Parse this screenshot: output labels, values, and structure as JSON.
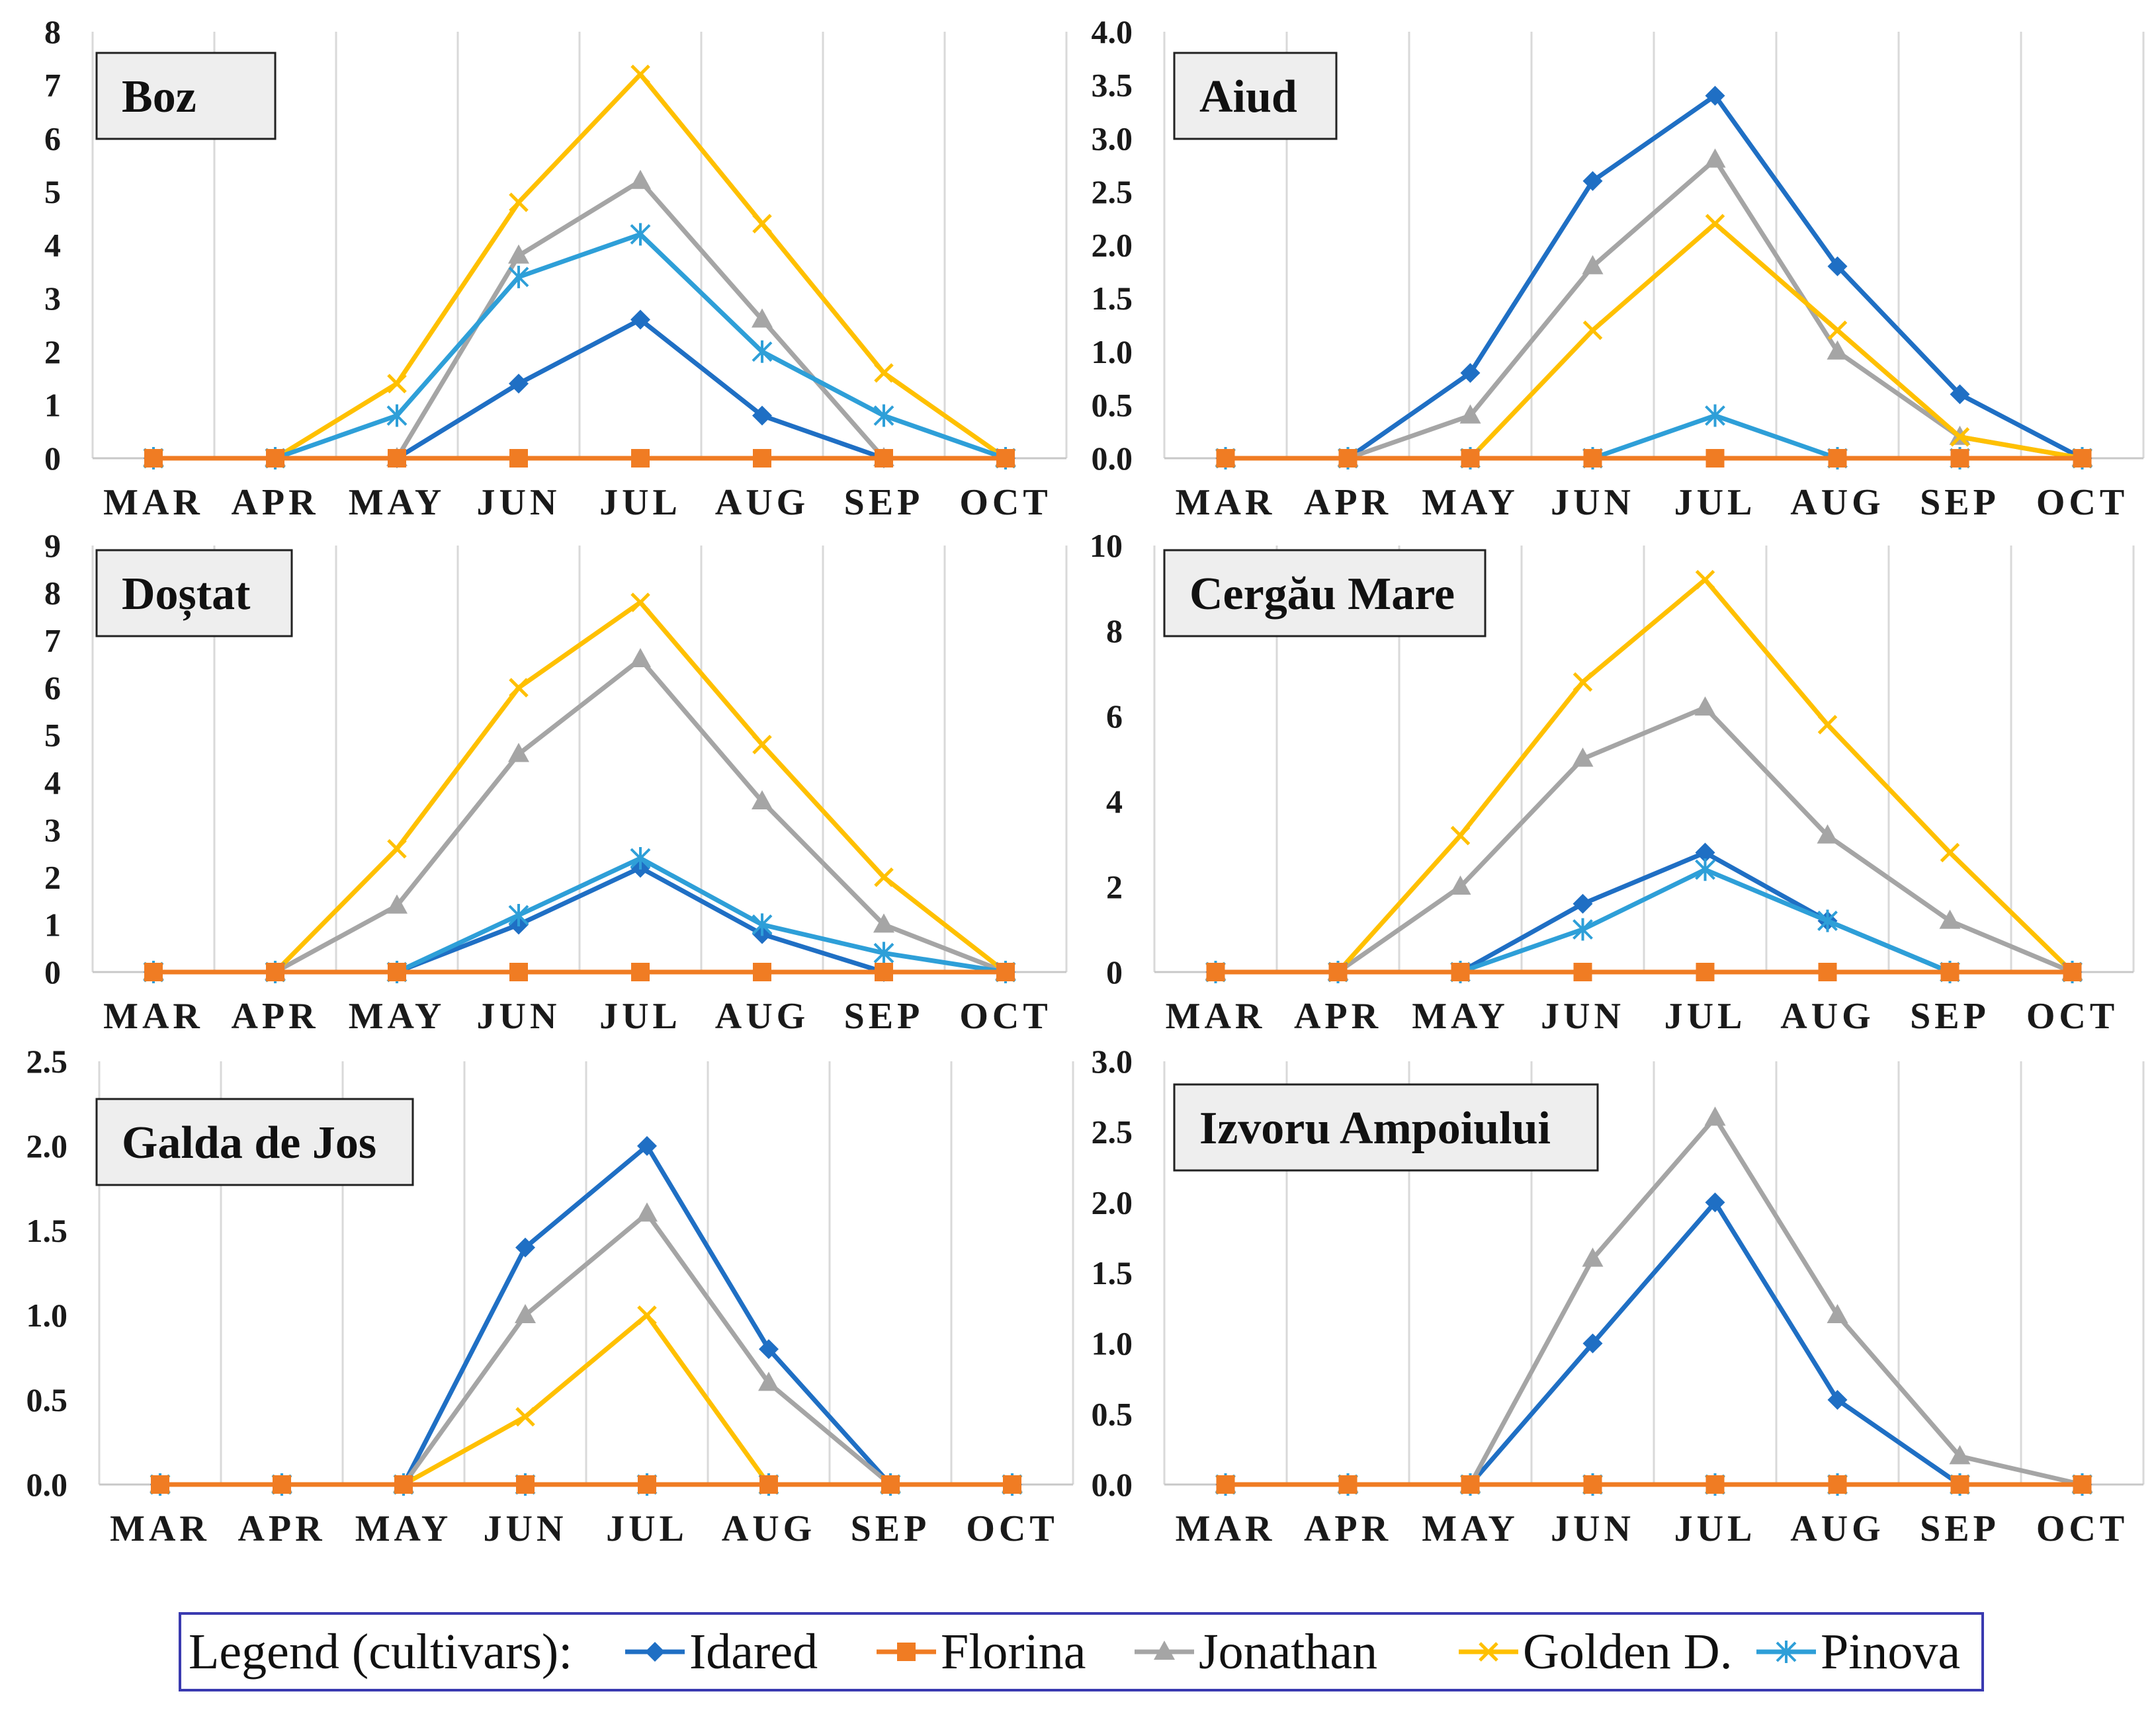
{
  "chart_data": {
    "type": "line",
    "categories": [
      "MAR",
      "APR",
      "MAY",
      "JUN",
      "JUL",
      "AUG",
      "SEP",
      "OCT"
    ],
    "legend": {
      "title": "Legend (cultivars):",
      "placement": "bottom",
      "items": [
        {
          "name": "Idared",
          "color": "#1f6fc4",
          "marker": "diamond"
        },
        {
          "name": "Florina",
          "color": "#f07c23",
          "marker": "square"
        },
        {
          "name": "Jonathan",
          "color": "#a5a5a5",
          "marker": "triangle"
        },
        {
          "name": "Golden D.",
          "color": "#ffc000",
          "marker": "x"
        },
        {
          "name": "Pinova",
          "color": "#2e9fd8",
          "marker": "star"
        }
      ]
    },
    "grid": "vertical",
    "panels": [
      {
        "title": "Boz",
        "ylim": [
          0,
          8
        ],
        "yticks": [
          "0",
          "1",
          "2",
          "3",
          "4",
          "5",
          "6",
          "7",
          "8"
        ],
        "series": [
          {
            "name": "Idared",
            "values": [
              0,
              0,
              0,
              1.4,
              2.6,
              0.8,
              0,
              0
            ]
          },
          {
            "name": "Florina",
            "values": [
              0,
              0,
              0,
              0,
              0,
              0,
              0,
              0
            ]
          },
          {
            "name": "Jonathan",
            "values": [
              0,
              0,
              0,
              3.8,
              5.2,
              2.6,
              0,
              0
            ]
          },
          {
            "name": "Golden D.",
            "values": [
              0,
              0,
              1.4,
              4.8,
              7.2,
              4.4,
              1.6,
              0
            ]
          },
          {
            "name": "Pinova",
            "values": [
              0,
              0,
              0.8,
              3.4,
              4.2,
              2.0,
              0.8,
              0
            ]
          }
        ]
      },
      {
        "title": "Aiud",
        "ylim": [
          0,
          4
        ],
        "yticks": [
          "0.0",
          "0.5",
          "1.0",
          "1.5",
          "2.0",
          "2.5",
          "3.0",
          "3.5",
          "4.0"
        ],
        "series": [
          {
            "name": "Idared",
            "values": [
              0,
              0,
              0.8,
              2.6,
              3.4,
              1.8,
              0.6,
              0
            ]
          },
          {
            "name": "Florina",
            "values": [
              0,
              0,
              0,
              0,
              0,
              0,
              0,
              0
            ]
          },
          {
            "name": "Jonathan",
            "values": [
              0,
              0,
              0.4,
              1.8,
              2.8,
              1.0,
              0.2,
              0
            ]
          },
          {
            "name": "Golden D.",
            "values": [
              0,
              0,
              0,
              1.2,
              2.2,
              1.2,
              0.2,
              0
            ]
          },
          {
            "name": "Pinova",
            "values": [
              0,
              0,
              0,
              0,
              0.4,
              0,
              0,
              0
            ]
          }
        ]
      },
      {
        "title": "Doștat",
        "ylim": [
          0,
          9
        ],
        "yticks": [
          "0",
          "1",
          "2",
          "3",
          "4",
          "5",
          "6",
          "7",
          "8",
          "9"
        ],
        "series": [
          {
            "name": "Idared",
            "values": [
              0,
              0,
              0,
              1.0,
              2.2,
              0.8,
              0,
              0
            ]
          },
          {
            "name": "Florina",
            "values": [
              0,
              0,
              0,
              0,
              0,
              0,
              0,
              0
            ]
          },
          {
            "name": "Jonathan",
            "values": [
              0,
              0,
              1.4,
              4.6,
              6.6,
              3.6,
              1.0,
              0
            ]
          },
          {
            "name": "Golden D.",
            "values": [
              0,
              0,
              2.6,
              6.0,
              7.8,
              4.8,
              2.0,
              0
            ]
          },
          {
            "name": "Pinova",
            "values": [
              0,
              0,
              0,
              1.2,
              2.4,
              1.0,
              0.4,
              0
            ]
          }
        ]
      },
      {
        "title": "Cergău Mare",
        "ylim": [
          0,
          10
        ],
        "yticks": [
          "0",
          "2",
          "4",
          "6",
          "8",
          "10"
        ],
        "series": [
          {
            "name": "Idared",
            "values": [
              0,
              0,
              0,
              1.6,
              2.8,
              1.2,
              0,
              0
            ]
          },
          {
            "name": "Florina",
            "values": [
              0,
              0,
              0,
              0,
              0,
              0,
              0,
              0
            ]
          },
          {
            "name": "Jonathan",
            "values": [
              0,
              0,
              2.0,
              5.0,
              6.2,
              3.2,
              1.2,
              0
            ]
          },
          {
            "name": "Golden D.",
            "values": [
              0,
              0,
              3.2,
              6.8,
              9.2,
              5.8,
              2.8,
              0
            ]
          },
          {
            "name": "Pinova",
            "values": [
              0,
              0,
              0,
              1.0,
              2.4,
              1.2,
              0,
              0
            ]
          }
        ]
      },
      {
        "title": "Galda de Jos",
        "ylim": [
          0,
          2.5
        ],
        "yticks": [
          "0.0",
          "0.5",
          "1.0",
          "1.5",
          "2.0",
          "2.5"
        ],
        "series": [
          {
            "name": "Idared",
            "values": [
              0,
              0,
              0,
              1.4,
              2.0,
              0.8,
              0,
              0
            ]
          },
          {
            "name": "Florina",
            "values": [
              0,
              0,
              0,
              0,
              0,
              0,
              0,
              0
            ]
          },
          {
            "name": "Jonathan",
            "values": [
              0,
              0,
              0,
              1.0,
              1.6,
              0.6,
              0,
              0
            ]
          },
          {
            "name": "Golden D.",
            "values": [
              0,
              0,
              0,
              0.4,
              1.0,
              0,
              0,
              0
            ]
          },
          {
            "name": "Pinova",
            "values": [
              0,
              0,
              0,
              0,
              0,
              0,
              0,
              0
            ]
          }
        ]
      },
      {
        "title": "Izvoru Ampoiului",
        "ylim": [
          0,
          3
        ],
        "yticks": [
          "0.0",
          "0.5",
          "1.0",
          "1.5",
          "2.0",
          "2.5",
          "3.0"
        ],
        "series": [
          {
            "name": "Idared",
            "values": [
              0,
              0,
              0,
              1.0,
              2.0,
              0.6,
              0,
              0
            ]
          },
          {
            "name": "Florina",
            "values": [
              0,
              0,
              0,
              0,
              0,
              0,
              0,
              0
            ]
          },
          {
            "name": "Jonathan",
            "values": [
              0,
              0,
              0,
              1.6,
              2.6,
              1.2,
              0.2,
              0
            ]
          },
          {
            "name": "Golden D.",
            "values": [
              0,
              0,
              0,
              0,
              0,
              0,
              0,
              0
            ]
          },
          {
            "name": "Pinova",
            "values": [
              0,
              0,
              0,
              0,
              0,
              0,
              0,
              0
            ]
          }
        ]
      }
    ]
  }
}
